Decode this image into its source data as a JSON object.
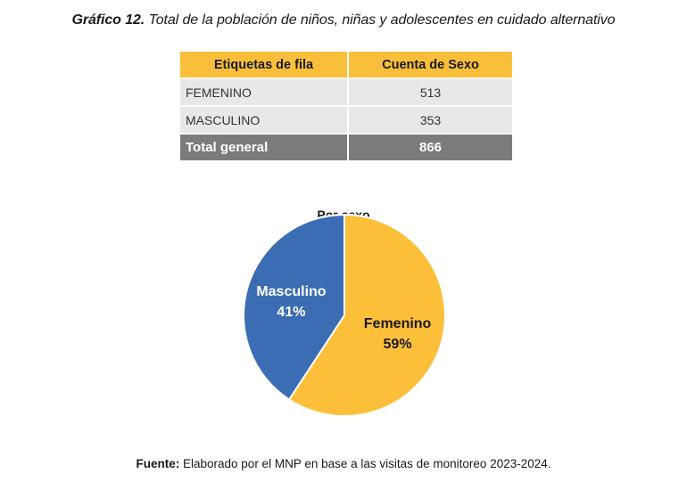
{
  "header": {
    "label": "Gráfico 12.",
    "title": "Total de la población de niños, niñas y adolescentes en cuidado alternativo"
  },
  "table": {
    "headers": [
      "Etiquetas de fila",
      "Cuenta de Sexo"
    ],
    "rows": [
      {
        "label": "FEMENINO",
        "value": "513"
      },
      {
        "label": "MASCULINO",
        "value": "353"
      }
    ],
    "total": {
      "label": "Total general",
      "value": "866"
    }
  },
  "chart_data": {
    "type": "pie",
    "title": "Por sexo",
    "categories": [
      "Femenino",
      "Masculino"
    ],
    "values": [
      513,
      353
    ],
    "percent_labels": [
      "59%",
      "41%"
    ],
    "colors": [
      "#fcbf3a",
      "#3b6db5"
    ],
    "label_colors": [
      "#1a1a1a",
      "#ffffff"
    ],
    "legend": "none"
  },
  "footer": {
    "source_label": "Fuente:",
    "source_text": "Elaborado por el MNP en base a las visitas de monitoreo 2023-2024."
  }
}
